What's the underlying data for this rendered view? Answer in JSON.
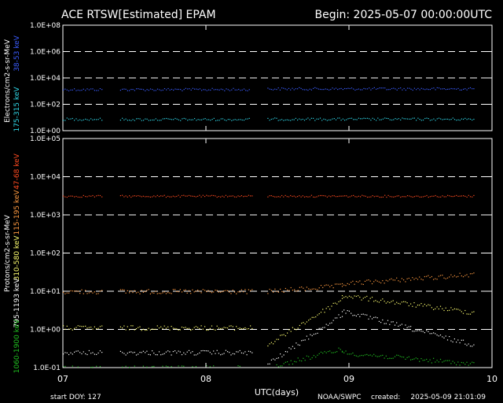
{
  "chart_data": {
    "type": "scatter",
    "title": "ACE RTSW[Estimated] EPAM",
    "begin_label": "Begin: 2025-05-07 00:00:00UTC",
    "xlabel": "UTC(days)",
    "x_ticks": [
      "07",
      "08",
      "09",
      "10"
    ],
    "xlim_days": [
      7,
      10
    ],
    "footer": {
      "start_doy": "start DOY:  127",
      "source": "NOAA/SWPC",
      "created_label": "created:",
      "created": "2025-05-09 21:01:09"
    },
    "colors": {
      "blue": "#3a5cff",
      "cyan": "#30d8e8",
      "red": "#ff4a20",
      "orange": "#ff9a40",
      "yellow": "#ffff70",
      "white": "#ffffff",
      "green": "#20c020"
    },
    "panels": [
      {
        "id": "electrons",
        "ylabel": "Electrons/cm2-s-sr-MeV",
        "log_ylim": [
          0,
          8
        ],
        "y_ticks": [
          "1.0E+00",
          "1.0E+02",
          "1.0E+04",
          "1.0E+06",
          "1.0E+08"
        ],
        "y_tick_log": [
          0,
          2,
          4,
          6,
          8
        ],
        "dashed_grid_log": [
          2,
          4,
          6
        ],
        "channels": [
          {
            "name": "38-53 keV",
            "color": "#3a5cff",
            "segments": [
              {
                "x0": 7.0,
                "x1": 7.27,
                "log_y": 3.15
              },
              {
                "x0": 7.4,
                "x1": 8.3,
                "log_y": 3.15
              },
              {
                "x0": 8.43,
                "x1": 9.87,
                "log_y": 3.2
              }
            ]
          },
          {
            "name": "175-315 keV",
            "color": "#30d8e8",
            "segments": [
              {
                "x0": 7.0,
                "x1": 7.27,
                "log_y": 0.9
              },
              {
                "x0": 7.4,
                "x1": 8.3,
                "log_y": 0.88
              },
              {
                "x0": 8.43,
                "x1": 9.87,
                "log_y": 0.9
              }
            ]
          }
        ]
      },
      {
        "id": "protons",
        "ylabel": "Protons/cm2-s-sr-MeV",
        "log_ylim": [
          -1,
          5
        ],
        "y_ticks": [
          "1.0E-01",
          "1.0E+00",
          "1.0E+01",
          "1.0E+02",
          "1.0E+03",
          "1.0E+04",
          "1.0E+05"
        ],
        "y_tick_log": [
          -1,
          0,
          1,
          2,
          3,
          4,
          5
        ],
        "dashed_grid_log": [
          0,
          1,
          2,
          3,
          4
        ],
        "channels": [
          {
            "name": "47-68 keV",
            "color": "#ff4a20",
            "segments": [
              {
                "x0": 7.0,
                "x1": 7.27,
                "log_y": 3.5,
                "log_y_end": 3.5
              },
              {
                "x0": 7.4,
                "x1": 8.32,
                "log_y": 3.5,
                "log_y_end": 3.5
              },
              {
                "x0": 8.43,
                "x1": 9.87,
                "log_y": 3.5,
                "log_y_end": 3.5
              }
            ]
          },
          {
            "name": "115-195 keV",
            "color": "#ff9a40",
            "segments": [
              {
                "x0": 7.0,
                "x1": 7.27,
                "log_y": 1.0,
                "log_y_end": 1.0
              },
              {
                "x0": 7.4,
                "x1": 8.32,
                "log_y": 1.0,
                "log_y_end": 1.0
              },
              {
                "x0": 8.43,
                "x1": 8.95,
                "log_y": 1.0,
                "log_y_end": 1.15
              },
              {
                "x0": 8.95,
                "x1": 9.87,
                "log_y": 1.2,
                "log_y_end": 1.45
              }
            ]
          },
          {
            "name": "310-580 keV",
            "color": "#ffff70",
            "segments": [
              {
                "x0": 7.0,
                "x1": 7.27,
                "log_y": 0.05,
                "log_y_end": 0.05
              },
              {
                "x0": 7.4,
                "x1": 8.32,
                "log_y": 0.05,
                "log_y_end": 0.05
              },
              {
                "x0": 8.43,
                "x1": 8.95,
                "log_y": -0.4,
                "log_y_end": 0.8
              },
              {
                "x0": 8.95,
                "x1": 9.87,
                "log_y": 0.9,
                "log_y_end": 0.45
              }
            ]
          },
          {
            "name": "795-1193 keV",
            "color": "#ffffff",
            "segments": [
              {
                "x0": 7.0,
                "x1": 7.27,
                "log_y": -0.6,
                "log_y_end": -0.6
              },
              {
                "x0": 7.4,
                "x1": 8.32,
                "log_y": -0.6,
                "log_y_end": -0.6
              },
              {
                "x0": 8.43,
                "x1": 8.95,
                "log_y": -0.9,
                "log_y_end": 0.4
              },
              {
                "x0": 8.95,
                "x1": 9.87,
                "log_y": 0.5,
                "log_y_end": -0.4
              }
            ]
          },
          {
            "name": "1060-1900 keV",
            "color": "#20c020",
            "segments": [
              {
                "x0": 7.0,
                "x1": 7.27,
                "log_y": -1.0,
                "log_y_end": -1.0
              },
              {
                "x0": 7.4,
                "x1": 8.32,
                "log_y": -1.0,
                "log_y_end": -1.0
              },
              {
                "x0": 8.43,
                "x1": 8.95,
                "log_y": -1.0,
                "log_y_end": -0.5
              },
              {
                "x0": 8.95,
                "x1": 9.87,
                "log_y": -0.6,
                "log_y_end": -0.9
              }
            ]
          }
        ]
      }
    ]
  }
}
